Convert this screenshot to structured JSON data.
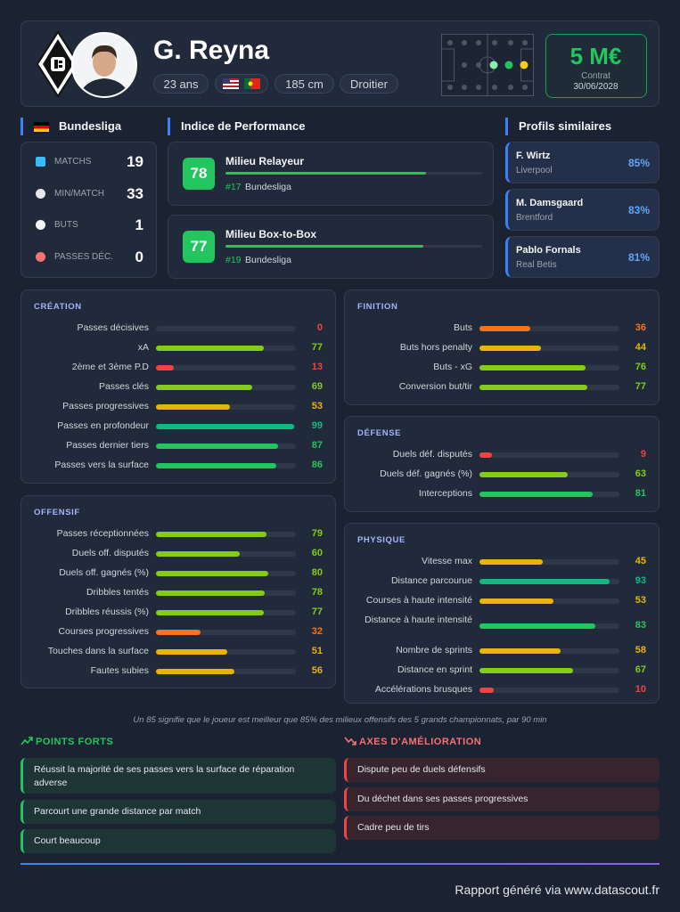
{
  "header": {
    "name": "G. Reyna",
    "age": "23 ans",
    "height": "185 cm",
    "foot": "Droitier",
    "market_value": "5 M€",
    "contract_label": "Contrat",
    "contract_date": "30/06/2028"
  },
  "bar_scale": [
    0,
    100
  ],
  "league": {
    "title": "Bundesliga",
    "stats": [
      {
        "label": "MATCHS",
        "value": 19
      },
      {
        "label": "MIN/MATCH",
        "value": 33
      },
      {
        "label": "BUTS",
        "value": 1
      },
      {
        "label": "PASSES DÉC.",
        "value": 0
      }
    ]
  },
  "performance": {
    "title": "Indice de Performance",
    "items": [
      {
        "score": 78,
        "role": "Milieu Relayeur",
        "rank": "#17",
        "league": "Bundesliga"
      },
      {
        "score": 77,
        "role": "Milieu Box-to-Box",
        "rank": "#19",
        "league": "Bundesliga"
      }
    ]
  },
  "similar": {
    "title": "Profils similaires",
    "items": [
      {
        "name": "F. Wirtz",
        "club": "Liverpool",
        "similarity": "85%"
      },
      {
        "name": "M. Damsgaard",
        "club": "Brentford",
        "similarity": "83%"
      },
      {
        "name": "Pablo Fornals",
        "club": "Real Betis",
        "similarity": "81%"
      }
    ]
  },
  "sections": [
    {
      "title": "CRÉATION",
      "metrics": [
        {
          "label": "Passes décisives",
          "value": 0
        },
        {
          "label": "xA",
          "value": 77
        },
        {
          "label": "2ème et 3ème P.D",
          "value": 13
        },
        {
          "label": "Passes clés",
          "value": 69
        },
        {
          "label": "Passes progressives",
          "value": 53
        },
        {
          "label": "Passes en profondeur",
          "value": 99
        },
        {
          "label": "Passes dernier tiers",
          "value": 87
        },
        {
          "label": "Passes vers la surface",
          "value": 86
        }
      ]
    },
    {
      "title": "OFFENSIF",
      "metrics": [
        {
          "label": "Passes réceptionnées",
          "value": 79
        },
        {
          "label": "Duels off. disputés",
          "value": 60
        },
        {
          "label": "Duels off. gagnés (%)",
          "value": 80
        },
        {
          "label": "Dribbles tentés",
          "value": 78
        },
        {
          "label": "Dribbles réussis (%)",
          "value": 77
        },
        {
          "label": "Courses progressives",
          "value": 32
        },
        {
          "label": "Touches dans la surface",
          "value": 51
        },
        {
          "label": "Fautes subies",
          "value": 56
        }
      ]
    },
    {
      "title": "FINITION",
      "metrics": [
        {
          "label": "Buts",
          "value": 36
        },
        {
          "label": "Buts hors penalty",
          "value": 44
        },
        {
          "label": "Buts - xG",
          "value": 76
        },
        {
          "label": "Conversion but/tir",
          "value": 77
        }
      ]
    },
    {
      "title": "DÉFENSE",
      "metrics": [
        {
          "label": "Duels déf. disputés",
          "value": 9
        },
        {
          "label": "Duels déf. gagnés (%)",
          "value": 63
        },
        {
          "label": "Interceptions",
          "value": 81
        }
      ]
    },
    {
      "title": "PHYSIQUE",
      "metrics": [
        {
          "label": "Vitesse max",
          "value": 45
        },
        {
          "label": "Distance parcourue",
          "value": 93
        },
        {
          "label": "Courses à haute intensité",
          "value": 53
        },
        {
          "label": "Distance à haute intensité",
          "value": 83
        },
        {
          "label": "Nombre de sprints",
          "value": 58
        },
        {
          "label": "Distance en sprint",
          "value": 67
        },
        {
          "label": "Accélérations brusques",
          "value": 10
        }
      ]
    }
  ],
  "note": "Un 85 signifie que le joueur est meilleur que 85% des milieux offensifs des 5 grands championnats, par 90 min",
  "strengths": {
    "title": "POINTS FORTS",
    "items": [
      "Réussit la majorité de ses passes vers la surface de réparation adverse",
      "Parcourt une grande distance par match",
      "Court beaucoup"
    ]
  },
  "improvements": {
    "title": "AXES D'AMÉLIORATION",
    "items": [
      "Dispute peu de duels défensifs",
      "Du déchet dans ses passes progressives",
      "Cadre peu de tirs"
    ]
  },
  "footer": "Rapport généré via www.datascout.fr"
}
